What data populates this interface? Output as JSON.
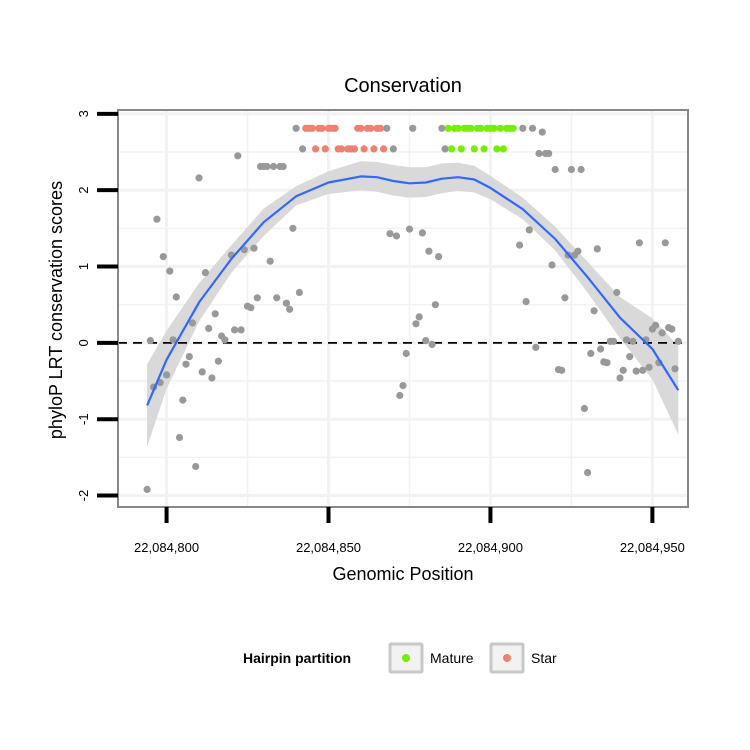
{
  "chart_data": {
    "type": "scatter",
    "title": "Conservation",
    "xlabel": "Genomic Position",
    "ylabel": "phyloP LRT conservation scores",
    "xlim": [
      22084785,
      22084961
    ],
    "ylim": [
      -2.15,
      3.05
    ],
    "x_ticks": [
      22084800,
      22084850,
      22084900,
      22084950
    ],
    "x_tick_labels": [
      "22,084,800",
      "22,084,850",
      "22,084,900",
      "22,084,950"
    ],
    "y_ticks": [
      -2,
      -1,
      0,
      1,
      2,
      3
    ],
    "y_tick_labels": [
      "-2",
      "-1",
      "0",
      "1",
      "2",
      "3"
    ],
    "grid": true,
    "reference_line": {
      "y": 0,
      "style": "dashed"
    },
    "colors": {
      "points": "#999999",
      "mature": "#77ee00",
      "star": "#f08070",
      "smooth_line": "#3366ff",
      "ribbon": "#d9d9d9",
      "panel_border": "#888888",
      "grid": "#f2f2f2"
    },
    "series": [
      {
        "name": "Other",
        "points": [
          [
            22084794,
            -1.92
          ],
          [
            22084795,
            0.03
          ],
          [
            22084796,
            -0.58
          ],
          [
            22084797,
            1.62
          ],
          [
            22084798,
            -0.52
          ],
          [
            22084799,
            1.13
          ],
          [
            22084800,
            -0.42
          ],
          [
            22084801,
            0.94
          ],
          [
            22084802,
            0.04
          ],
          [
            22084803,
            0.6
          ],
          [
            22084804,
            -1.24
          ],
          [
            22084805,
            -0.75
          ],
          [
            22084806,
            -0.28
          ],
          [
            22084807,
            -0.18
          ],
          [
            22084808,
            0.26
          ],
          [
            22084809,
            -1.62
          ],
          [
            22084810,
            2.16
          ],
          [
            22084811,
            -0.38
          ],
          [
            22084812,
            0.92
          ],
          [
            22084813,
            0.19
          ],
          [
            22084814,
            -0.46
          ],
          [
            22084815,
            0.38
          ],
          [
            22084816,
            -0.24
          ],
          [
            22084817,
            0.09
          ],
          [
            22084818,
            0.04
          ],
          [
            22084820,
            1.15
          ],
          [
            22084821,
            0.17
          ],
          [
            22084822,
            2.45
          ],
          [
            22084823,
            0.17
          ],
          [
            22084824,
            1.22
          ],
          [
            22084825,
            0.48
          ],
          [
            22084826,
            0.46
          ],
          [
            22084827,
            1.24
          ],
          [
            22084828,
            0.59
          ],
          [
            22084829,
            2.31
          ],
          [
            22084830,
            2.31
          ],
          [
            22084831,
            2.31
          ],
          [
            22084832,
            1.07
          ],
          [
            22084833,
            2.31
          ],
          [
            22084834,
            0.59
          ],
          [
            22084835,
            2.31
          ],
          [
            22084836,
            2.31
          ],
          [
            22084837,
            0.52
          ],
          [
            22084838,
            0.44
          ],
          [
            22084839,
            1.5
          ],
          [
            22084840,
            2.81
          ],
          [
            22084841,
            0.66
          ],
          [
            22084842,
            2.54
          ],
          [
            22084868,
            2.81
          ],
          [
            22084869,
            1.43
          ],
          [
            22084870,
            2.54
          ],
          [
            22084871,
            1.4
          ],
          [
            22084872,
            -0.69
          ],
          [
            22084873,
            -0.56
          ],
          [
            22084874,
            -0.14
          ],
          [
            22084875,
            1.49
          ],
          [
            22084876,
            2.81
          ],
          [
            22084877,
            0.25
          ],
          [
            22084878,
            0.34
          ],
          [
            22084879,
            1.44
          ],
          [
            22084880,
            0.03
          ],
          [
            22084881,
            1.2
          ],
          [
            22084882,
            -0.02
          ],
          [
            22084883,
            0.5
          ],
          [
            22084884,
            1.13
          ],
          [
            22084885,
            2.81
          ],
          [
            22084886,
            2.54
          ],
          [
            22084909,
            1.28
          ],
          [
            22084910,
            2.81
          ],
          [
            22084911,
            0.54
          ],
          [
            22084912,
            1.48
          ],
          [
            22084913,
            2.81
          ],
          [
            22084914,
            -0.06
          ],
          [
            22084915,
            2.48
          ],
          [
            22084916,
            2.76
          ],
          [
            22084917,
            2.48
          ],
          [
            22084918,
            2.48
          ],
          [
            22084919,
            1.02
          ],
          [
            22084920,
            2.27
          ],
          [
            22084921,
            -0.35
          ],
          [
            22084922,
            -0.36
          ],
          [
            22084923,
            0.59
          ],
          [
            22084924,
            1.15
          ],
          [
            22084925,
            2.27
          ],
          [
            22084926,
            1.15
          ],
          [
            22084927,
            1.2
          ],
          [
            22084928,
            2.27
          ],
          [
            22084929,
            -0.86
          ],
          [
            22084930,
            -1.7
          ],
          [
            22084931,
            -0.14
          ],
          [
            22084932,
            0.42
          ],
          [
            22084933,
            1.23
          ],
          [
            22084934,
            -0.08
          ],
          [
            22084935,
            -0.25
          ],
          [
            22084936,
            -0.26
          ],
          [
            22084937,
            0.02
          ],
          [
            22084938,
            0.02
          ],
          [
            22084939,
            0.66
          ],
          [
            22084940,
            -0.46
          ],
          [
            22084941,
            -0.36
          ],
          [
            22084942,
            0.04
          ],
          [
            22084943,
            -0.18
          ],
          [
            22084944,
            0.02
          ],
          [
            22084945,
            -0.37
          ],
          [
            22084946,
            1.31
          ],
          [
            22084947,
            -0.36
          ],
          [
            22084948,
            0.04
          ],
          [
            22084949,
            -0.32
          ],
          [
            22084950,
            0.18
          ],
          [
            22084951,
            0.23
          ],
          [
            22084952,
            -0.26
          ],
          [
            22084953,
            0.13
          ],
          [
            22084954,
            1.31
          ],
          [
            22084955,
            0.2
          ],
          [
            22084956,
            0.18
          ],
          [
            22084957,
            -0.34
          ],
          [
            22084958,
            0.02
          ]
        ]
      },
      {
        "name": "Star",
        "points": [
          [
            22084843,
            2.81
          ],
          [
            22084844,
            2.81
          ],
          [
            22084845,
            2.81
          ],
          [
            22084846,
            2.54
          ],
          [
            22084847,
            2.81
          ],
          [
            22084848,
            2.81
          ],
          [
            22084849,
            2.54
          ],
          [
            22084850,
            2.81
          ],
          [
            22084851,
            2.81
          ],
          [
            22084852,
            2.81
          ],
          [
            22084853,
            2.54
          ],
          [
            22084854,
            2.54
          ],
          [
            22084856,
            2.54
          ],
          [
            22084857,
            2.54
          ],
          [
            22084858,
            2.54
          ],
          [
            22084859,
            2.81
          ],
          [
            22084860,
            2.81
          ],
          [
            22084861,
            2.54
          ],
          [
            22084862,
            2.81
          ],
          [
            22084863,
            2.81
          ],
          [
            22084864,
            2.54
          ],
          [
            22084865,
            2.81
          ],
          [
            22084866,
            2.81
          ],
          [
            22084867,
            2.54
          ]
        ]
      },
      {
        "name": "Mature",
        "points": [
          [
            22084887,
            2.81
          ],
          [
            22084888,
            2.54
          ],
          [
            22084889,
            2.81
          ],
          [
            22084890,
            2.81
          ],
          [
            22084891,
            2.54
          ],
          [
            22084892,
            2.81
          ],
          [
            22084893,
            2.81
          ],
          [
            22084894,
            2.81
          ],
          [
            22084895,
            2.54
          ],
          [
            22084896,
            2.81
          ],
          [
            22084897,
            2.81
          ],
          [
            22084898,
            2.54
          ],
          [
            22084899,
            2.81
          ],
          [
            22084900,
            2.81
          ],
          [
            22084901,
            2.81
          ],
          [
            22084902,
            2.54
          ],
          [
            22084903,
            2.81
          ],
          [
            22084904,
            2.54
          ],
          [
            22084905,
            2.81
          ],
          [
            22084906,
            2.81
          ],
          [
            22084907,
            2.81
          ]
        ]
      }
    ],
    "smooth": {
      "x": [
        22084794,
        22084800,
        22084810,
        22084820,
        22084830,
        22084840,
        22084850,
        22084860,
        22084865,
        22084870,
        22084875,
        22084880,
        22084885,
        22084890,
        22084895,
        22084900,
        22084910,
        22084920,
        22084930,
        22084940,
        22084950,
        22084958
      ],
      "y": [
        -0.82,
        -0.22,
        0.53,
        1.1,
        1.58,
        1.92,
        2.1,
        2.18,
        2.17,
        2.12,
        2.09,
        2.1,
        2.15,
        2.17,
        2.14,
        2.03,
        1.75,
        1.36,
        0.86,
        0.33,
        -0.08,
        -0.62
      ],
      "lower": [
        -1.36,
        -0.6,
        0.28,
        0.92,
        1.4,
        1.8,
        1.95,
        2.0,
        1.98,
        1.93,
        1.9,
        1.91,
        1.96,
        1.99,
        1.97,
        1.88,
        1.62,
        1.21,
        0.66,
        0.06,
        -0.48,
        -1.2
      ],
      "upper": [
        -0.28,
        0.16,
        0.78,
        1.28,
        1.76,
        2.05,
        2.25,
        2.38,
        2.37,
        2.33,
        2.3,
        2.3,
        2.35,
        2.36,
        2.32,
        2.19,
        1.9,
        1.52,
        1.06,
        0.6,
        0.32,
        -0.04
      ]
    },
    "legend": {
      "title": "Hairpin partition",
      "position": "bottom",
      "entries": [
        {
          "label": "Mature",
          "color": "#77ee00"
        },
        {
          "label": "Star",
          "color": "#f08070"
        }
      ]
    }
  }
}
